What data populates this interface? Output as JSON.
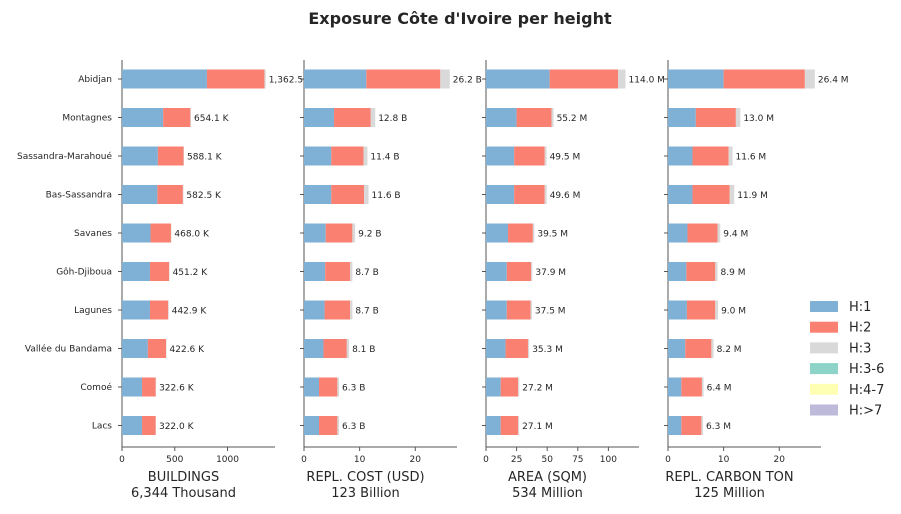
{
  "title": "Exposure Côte d'Ivoire per height",
  "colors": {
    "H:1": "#7fb0d6",
    "H:2": "#fa8072",
    "H:3": "#d9d9d9",
    "H:3-6": "#8dd3c7",
    "H:4-7": "#ffffb3",
    "H:>7": "#bebada"
  },
  "legend": [
    "H:1",
    "H:2",
    "H:3",
    "H:3-6",
    "H:4-7",
    "H:>7"
  ],
  "chart_data": [
    {
      "type": "bar",
      "orientation": "horizontal",
      "stacked": true,
      "xlabel": "BUILDINGS",
      "xlabel2": "6,344 Thousand",
      "xlim": [
        0,
        1450
      ],
      "xticks": [
        0,
        500,
        1000
      ],
      "categories": [
        "Abidjan",
        "Montagnes",
        "Sassandra-Marahoué",
        "Bas-Sassandra",
        "Savanes",
        "Gôh-Djiboua",
        "Lagunes",
        "Vallée du Bandama",
        "Comoé",
        "Lacs"
      ],
      "series": [
        {
          "name": "H:1",
          "values": [
            805,
            390,
            340,
            335,
            270,
            265,
            265,
            245,
            190,
            190
          ]
        },
        {
          "name": "H:2",
          "values": [
            545,
            258,
            243,
            242,
            194,
            182,
            173,
            173,
            130,
            130
          ]
        },
        {
          "name": "H:3",
          "values": [
            12,
            6,
            5,
            5,
            4,
            4,
            5,
            4,
            3,
            2
          ]
        }
      ],
      "labels": [
        "1,362.5",
        "654.1 K",
        "588.1 K",
        "582.5 K",
        "468.0 K",
        "451.2 K",
        "442.9 K",
        "422.6 K",
        "322.6 K",
        "322.0 K"
      ]
    },
    {
      "type": "bar",
      "orientation": "horizontal",
      "stacked": true,
      "xlabel": "REPL. COST (USD)",
      "xlabel2": "123 Billion",
      "xlim": [
        0,
        27.5
      ],
      "xticks": [
        0,
        10,
        20
      ],
      "categories": [
        "Abidjan",
        "Montagnes",
        "Sassandra-Marahoué",
        "Bas-Sassandra",
        "Savanes",
        "Gôh-Djiboua",
        "Lagunes",
        "Vallée du Bandama",
        "Comoé",
        "Lacs"
      ],
      "series": [
        {
          "name": "H:1",
          "values": [
            11.2,
            5.4,
            4.9,
            4.9,
            3.9,
            3.8,
            3.7,
            3.5,
            2.7,
            2.7
          ]
        },
        {
          "name": "H:2",
          "values": [
            13.3,
            6.6,
            5.8,
            5.9,
            4.8,
            4.5,
            4.6,
            4.2,
            3.3,
            3.3
          ]
        },
        {
          "name": "H:3",
          "values": [
            1.7,
            0.8,
            0.7,
            0.8,
            0.5,
            0.4,
            0.4,
            0.4,
            0.3,
            0.3
          ]
        }
      ],
      "labels": [
        "26.2 B",
        "12.8 B",
        "11.4 B",
        "11.6 B",
        "9.2 B",
        "8.7 B",
        "8.7 B",
        "8.1 B",
        "6.3 B",
        "6.3 B"
      ]
    },
    {
      "type": "bar",
      "orientation": "horizontal",
      "stacked": true,
      "xlabel": "AREA (SQM)",
      "xlabel2": "534 Million",
      "xlim": [
        0,
        125
      ],
      "xticks": [
        0,
        25,
        50,
        75,
        100
      ],
      "categories": [
        "Abidjan",
        "Montagnes",
        "Sassandra-Marahoué",
        "Bas-Sassandra",
        "Savanes",
        "Gôh-Djiboua",
        "Lagunes",
        "Vallée du Bandama",
        "Comoé",
        "Lacs"
      ],
      "series": [
        {
          "name": "H:1",
          "values": [
            52,
            25,
            23,
            23,
            18,
            17,
            17,
            16,
            12,
            12
          ]
        },
        {
          "name": "H:2",
          "values": [
            56,
            28.5,
            25,
            25,
            20.3,
            19.8,
            19.4,
            18.3,
            14.3,
            14.3
          ]
        },
        {
          "name": "H:3",
          "values": [
            6,
            1.7,
            1.5,
            1.6,
            1.2,
            1.1,
            1.1,
            1.0,
            0.9,
            0.8
          ]
        }
      ],
      "labels": [
        "114.0 M",
        "55.2 M",
        "49.5 M",
        "49.6 M",
        "39.5 M",
        "37.9 M",
        "37.5 M",
        "35.3 M",
        "27.2 M",
        "27.1 M"
      ]
    },
    {
      "type": "bar",
      "orientation": "horizontal",
      "stacked": true,
      "xlabel": "REPL. CARBON TON",
      "xlabel2": "125 Million",
      "xlim": [
        0,
        27.5
      ],
      "xticks": [
        0,
        10,
        20
      ],
      "categories": [
        "Abidjan",
        "Montagnes",
        "Sassandra-Marahoué",
        "Bas-Sassandra",
        "Savanes",
        "Gôh-Djiboua",
        "Lagunes",
        "Vallée du Bandama",
        "Comoé",
        "Lacs"
      ],
      "series": [
        {
          "name": "H:1",
          "values": [
            10.0,
            5.0,
            4.4,
            4.4,
            3.5,
            3.3,
            3.4,
            3.1,
            2.4,
            2.4
          ]
        },
        {
          "name": "H:2",
          "values": [
            14.6,
            7.2,
            6.5,
            6.7,
            5.4,
            5.2,
            5.1,
            4.7,
            3.7,
            3.6
          ]
        },
        {
          "name": "H:3",
          "values": [
            1.8,
            0.8,
            0.7,
            0.8,
            0.5,
            0.4,
            0.5,
            0.4,
            0.3,
            0.3
          ]
        }
      ],
      "labels": [
        "26.4 M",
        "13.0 M",
        "11.6 M",
        "11.9 M",
        "9.4 M",
        "8.9 M",
        "9.0 M",
        "8.2 M",
        "6.4 M",
        "6.3 M"
      ]
    }
  ]
}
